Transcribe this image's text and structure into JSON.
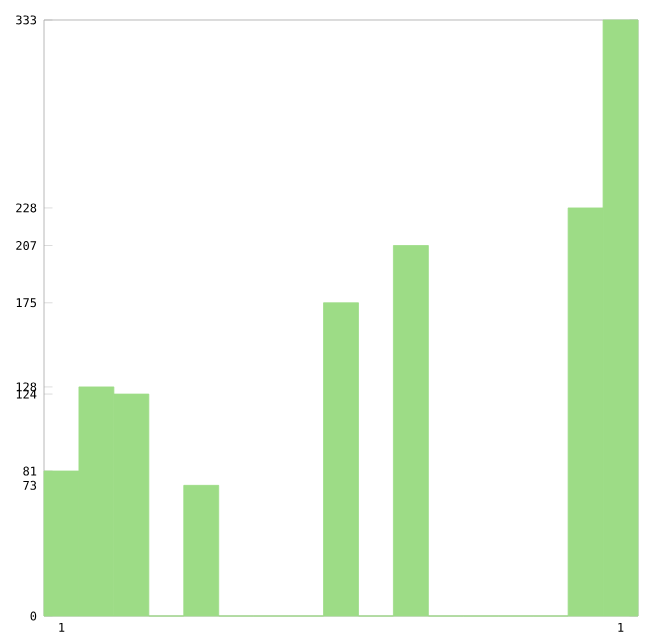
{
  "chart_data": {
    "type": "bar",
    "categories": [
      "1",
      null,
      null,
      null,
      null,
      null,
      null,
      null,
      null,
      null,
      null,
      null,
      null,
      null,
      null,
      null,
      "1"
    ],
    "values": [
      81,
      128,
      124,
      0,
      73,
      0,
      0,
      0,
      175,
      0,
      207,
      0,
      0,
      0,
      0,
      228,
      333
    ],
    "color": "#9ddc86",
    "ylim": [
      0,
      333
    ],
    "yticks": [
      0,
      73,
      81,
      124,
      128,
      175,
      207,
      228,
      333
    ],
    "grid": false
  }
}
